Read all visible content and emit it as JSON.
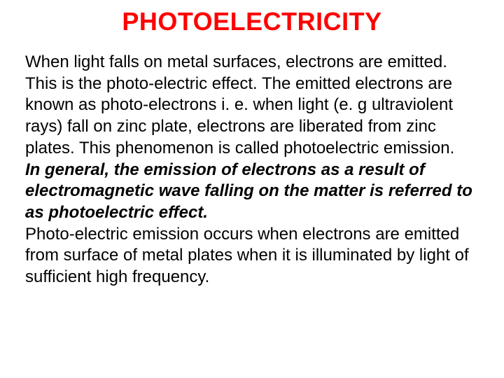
{
  "title": {
    "text": "PHOTOELECTRICITY",
    "color": "#ff0000",
    "fontsize": 36
  },
  "body": {
    "color": "#000000",
    "fontsize": 24,
    "para1": "When light falls on metal surfaces, electrons are emitted. This is the photo-electric effect. The emitted electrons are known as photo-electrons i. e. when light (e. g ultraviolent rays) fall on zinc plate, electrons are liberated from zinc plates. This phenomenon is called photoelectric emission.",
    "para2": "In general, the emission of electrons as a result of electromagnetic wave falling on the matter is referred to as photoelectric effect.",
    "para3": "Photo-electric emission occurs when electrons are emitted from surface of metal plates when it is illuminated by light of sufficient high frequency."
  }
}
